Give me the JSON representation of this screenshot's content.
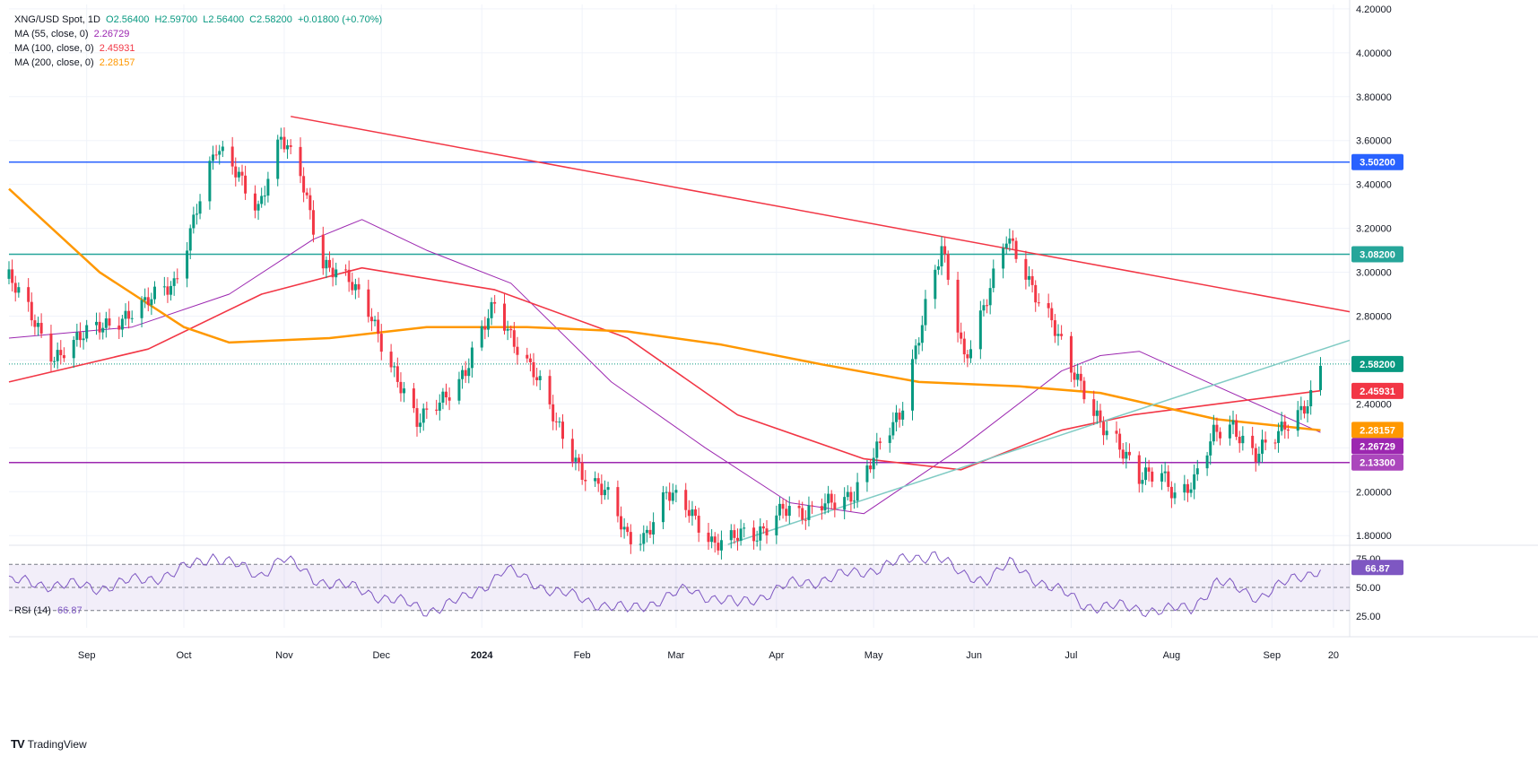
{
  "header": {
    "symbol": "XNG/USD Spot, 1D",
    "open": "O2.56400",
    "high": "H2.59700",
    "low": "L2.56400",
    "close": "C2.58200",
    "change": "+0.01800 (+0.70%)",
    "ma55_label": "MA (55, close, 0)",
    "ma55_value": "2.26729",
    "ma100_label": "MA (100, close, 0)",
    "ma100_value": "2.45931",
    "ma200_label": "MA (200, close, 0)",
    "ma200_value": "2.28157"
  },
  "rsi_header": {
    "label": "RSI (14)",
    "value": "66.87"
  },
  "branding": {
    "logo_text": "TradingView",
    "logo_mark": "TV"
  },
  "colors": {
    "up": "#089981",
    "down": "#f23645",
    "ma55": "#9c27b0",
    "ma100": "#f23645",
    "ma200": "#ff9800",
    "rsi": "#7e57c2",
    "blue_level": "#2962ff",
    "teal_level": "#26a69a",
    "purple_level": "#9c27b0",
    "trend_down": "#f23645",
    "trend_up": "#80cbc4",
    "grid": "#f0f3fa"
  },
  "chart_data": {
    "type": "candlestick",
    "symbol": "XNG/USD",
    "timeframe": "1D",
    "y_axis_ticks": [
      "4.20000",
      "4.00000",
      "3.80000",
      "3.60000",
      "3.40000",
      "3.20000",
      "3.00000",
      "2.80000",
      "2.60000",
      "2.40000",
      "2.20000",
      "2.00000",
      "1.80000"
    ],
    "ylim": [
      1.76,
      4.22
    ],
    "x_axis_labels": [
      "Sep",
      "Oct",
      "Nov",
      "Dec",
      "2024",
      "Feb",
      "Mar",
      "Apr",
      "May",
      "Jun",
      "Jul",
      "Aug",
      "Sep",
      "20"
    ],
    "x_axis_dates": [
      "2023-09-01",
      "2023-10-01",
      "2023-11-01",
      "2023-12-01",
      "2024-01-01",
      "2024-02-01",
      "2024-03-01",
      "2024-04-01",
      "2024-05-01",
      "2024-06-01",
      "2024-07-01",
      "2024-08-01",
      "2024-09-01",
      "2024-09-20"
    ],
    "xlim": [
      "2023-08-08",
      "2024-09-25"
    ],
    "price_series": {
      "name": "XNG/USD",
      "dates": [
        "2023-08-08",
        "2023-08-22",
        "2023-09-05",
        "2023-09-19",
        "2023-09-28",
        "2023-10-05",
        "2023-10-11",
        "2023-10-18",
        "2023-10-24",
        "2023-10-31",
        "2023-11-06",
        "2023-11-13",
        "2023-11-21",
        "2023-11-28",
        "2023-12-05",
        "2023-12-12",
        "2023-12-19",
        "2023-12-27",
        "2024-01-05",
        "2024-01-10",
        "2024-01-17",
        "2024-01-24",
        "2024-02-01",
        "2024-02-08",
        "2024-02-15",
        "2024-02-20",
        "2024-02-27",
        "2024-03-05",
        "2024-03-12",
        "2024-03-19",
        "2024-03-26",
        "2024-04-03",
        "2024-04-10",
        "2024-04-17",
        "2024-04-25",
        "2024-05-01",
        "2024-05-09",
        "2024-05-17",
        "2024-05-22",
        "2024-05-29",
        "2024-06-05",
        "2024-06-11",
        "2024-06-18",
        "2024-06-25",
        "2024-07-01",
        "2024-07-08",
        "2024-07-15",
        "2024-07-22",
        "2024-07-29",
        "2024-08-02",
        "2024-08-08",
        "2024-08-14",
        "2024-08-20",
        "2024-08-27",
        "2024-09-03",
        "2024-09-09",
        "2024-09-13",
        "2024-09-16"
      ],
      "close": [
        2.97,
        2.62,
        2.75,
        2.85,
        2.95,
        3.3,
        3.55,
        3.45,
        3.3,
        3.6,
        3.45,
        3.05,
        2.95,
        2.8,
        2.55,
        2.3,
        2.42,
        2.55,
        2.85,
        2.72,
        2.55,
        2.3,
        2.1,
        2.0,
        1.78,
        1.8,
        2.0,
        1.9,
        1.78,
        1.8,
        1.78,
        1.95,
        1.88,
        1.95,
        2.0,
        2.15,
        2.35,
        2.85,
        3.1,
        2.6,
        2.9,
        3.15,
        2.95,
        2.8,
        2.55,
        2.35,
        2.25,
        2.05,
        2.08,
        2.0,
        2.05,
        2.25,
        2.3,
        2.18,
        2.25,
        2.35,
        2.45,
        2.582
      ],
      "high_marker": {
        "date": "2024-06-11",
        "value": 3.2
      }
    },
    "moving_averages": [
      {
        "name": "MA (55, close, 0)",
        "last": 2.26729,
        "x": [
          "2023-08-08",
          "2023-09-15",
          "2023-10-15",
          "2023-11-10",
          "2023-11-25",
          "2023-12-15",
          "2024-01-10",
          "2024-02-10",
          "2024-03-10",
          "2024-04-05",
          "2024-04-28",
          "2024-05-28",
          "2024-06-28",
          "2024-07-10",
          "2024-07-22",
          "2024-08-12",
          "2024-09-16"
        ],
        "y": [
          2.7,
          2.75,
          2.9,
          3.15,
          3.24,
          3.1,
          2.95,
          2.5,
          2.2,
          1.95,
          1.9,
          2.2,
          2.55,
          2.62,
          2.64,
          2.5,
          2.27
        ]
      },
      {
        "name": "MA (100, close, 0)",
        "last": 2.45931,
        "x": [
          "2023-08-08",
          "2023-09-20",
          "2023-10-25",
          "2023-11-25",
          "2024-01-05",
          "2024-02-15",
          "2024-03-20",
          "2024-04-28",
          "2024-05-28",
          "2024-06-28",
          "2024-07-20",
          "2024-08-15",
          "2024-09-16"
        ],
        "y": [
          2.5,
          2.65,
          2.9,
          3.02,
          2.92,
          2.7,
          2.35,
          2.15,
          2.1,
          2.28,
          2.35,
          2.4,
          2.46
        ]
      },
      {
        "name": "MA (200, close, 0)",
        "last": 2.28157,
        "x": [
          "2023-08-08",
          "2023-09-05",
          "2023-10-01",
          "2023-10-15",
          "2023-11-15",
          "2023-12-15",
          "2024-01-15",
          "2024-02-15",
          "2024-03-15",
          "2024-04-15",
          "2024-05-15",
          "2024-06-15",
          "2024-07-10",
          "2024-08-15",
          "2024-09-16"
        ],
        "y": [
          3.38,
          3.0,
          2.75,
          2.68,
          2.7,
          2.75,
          2.75,
          2.73,
          2.67,
          2.58,
          2.5,
          2.48,
          2.45,
          2.33,
          2.28
        ]
      }
    ],
    "horizontal_levels": [
      {
        "price": 3.502,
        "label": "3.50200"
      },
      {
        "price": 3.082,
        "label": "3.08200"
      },
      {
        "price": 2.133,
        "label": "2.13300"
      }
    ],
    "trendlines": [
      {
        "name": "descending",
        "from": [
          "2023-11-03",
          3.71
        ],
        "to": [
          "2024-09-25",
          2.82
        ]
      },
      {
        "name": "ascending",
        "from": [
          "2024-03-17",
          1.76
        ],
        "to": [
          "2024-09-25",
          2.69
        ]
      }
    ],
    "price_labels": [
      {
        "text": "2.58200",
        "value": 2.582,
        "color": "#089981"
      },
      {
        "text": "2.45931",
        "value": 2.45931,
        "color": "#f23645"
      },
      {
        "text": "2.28157",
        "value": 2.28157,
        "color": "#ff9800"
      },
      {
        "text": "2.26729",
        "value": 2.26729,
        "color": "#9c27b0"
      },
      {
        "text": "2.13300",
        "value": 2.133,
        "color": "#ab47bc"
      },
      {
        "text": "3.08200",
        "value": 3.082,
        "color": "#26a69a"
      },
      {
        "text": "3.50200",
        "value": 3.502,
        "color": "#2962ff"
      }
    ],
    "rsi": {
      "name": "RSI (14)",
      "last": 66.87,
      "ylim": [
        15,
        85
      ],
      "levels": [
        70,
        50,
        30
      ],
      "tick_labels": [
        "75.00",
        "50.00",
        "25.00"
      ],
      "x": [
        "2023-08-08",
        "2023-09-05",
        "2023-09-28",
        "2023-10-10",
        "2023-10-24",
        "2023-10-31",
        "2023-11-10",
        "2023-11-28",
        "2023-12-15",
        "2023-12-27",
        "2024-01-08",
        "2024-01-25",
        "2024-02-15",
        "2024-03-05",
        "2024-03-20",
        "2024-04-05",
        "2024-04-25",
        "2024-05-20",
        "2024-05-28",
        "2024-06-05",
        "2024-06-12",
        "2024-07-05",
        "2024-07-30",
        "2024-08-07",
        "2024-08-15",
        "2024-08-28",
        "2024-09-10",
        "2024-09-16"
      ],
      "y": [
        55,
        50,
        62,
        78,
        60,
        76,
        58,
        45,
        30,
        40,
        65,
        45,
        30,
        48,
        35,
        52,
        62,
        80,
        60,
        58,
        70,
        35,
        30,
        32,
        55,
        42,
        60,
        66.87
      ]
    }
  }
}
